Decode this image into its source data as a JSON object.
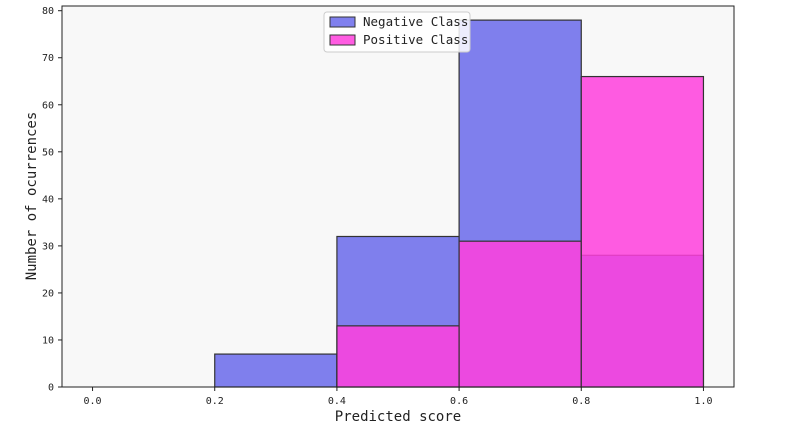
{
  "chart_data": {
    "type": "bar",
    "bin_edges": [
      0.0,
      0.2,
      0.4,
      0.6,
      0.8,
      1.0
    ],
    "series": [
      {
        "name": "Negative Class",
        "values": [
          0,
          7,
          32,
          78,
          28
        ],
        "color": "#6a6aeb"
      },
      {
        "name": "Positive Class",
        "values": [
          0,
          0,
          13,
          31,
          66
        ],
        "color": "#ff40dd"
      }
    ],
    "xlabel": "Predicted score",
    "ylabel": "Number of ocurrences",
    "xlim": [
      -0.05,
      1.05
    ],
    "ylim": [
      0,
      81
    ],
    "xticks": [
      "0.0",
      "0.2",
      "0.4",
      "0.6",
      "0.8",
      "1.0"
    ],
    "yticks": [
      "0",
      "10",
      "20",
      "30",
      "40",
      "50",
      "60",
      "70",
      "80"
    ],
    "grid": false,
    "legend_position": "top-center",
    "background": "#f8f8f8"
  }
}
